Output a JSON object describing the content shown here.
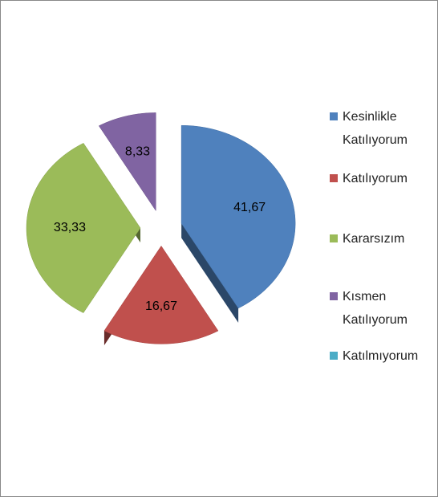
{
  "chart_data": {
    "type": "pie",
    "categories": [
      "Kesinlikle Katılıyorum",
      "Katılıyorum",
      "Kararsızım",
      "Kısmen Katılıyorum",
      "Katılmıyorum"
    ],
    "values": [
      41.67,
      16.67,
      33.33,
      8.33,
      0
    ],
    "value_labels": [
      "41,67",
      "16,67",
      "33,33",
      "8,33",
      null
    ],
    "colors": [
      "#4f81bd",
      "#c0504d",
      "#9bbb59",
      "#8064a2",
      "#4bacc6"
    ],
    "legend": "right"
  }
}
